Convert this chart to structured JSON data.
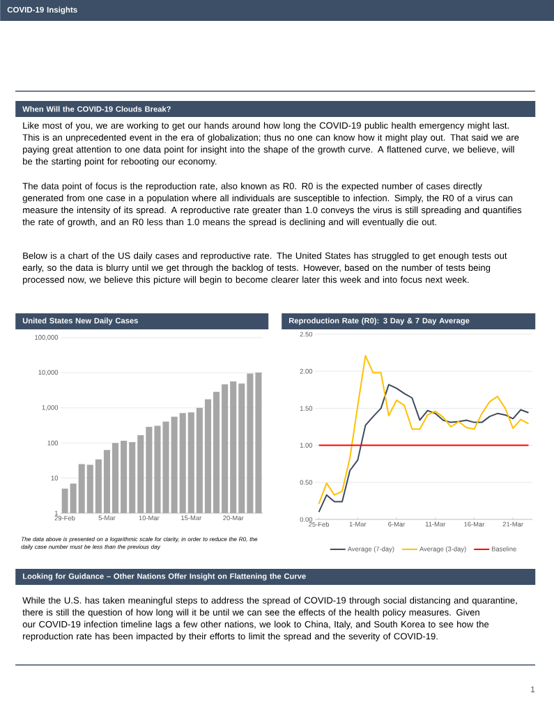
{
  "chart_data": [
    {
      "type": "other",
      "title": "COVID-19 Insights",
      "subtitle": "When Will the COVID-19 Clouds Break?",
      "annotations": [
        "Like most of you, we are working to get our hands around how long the COVID-19 public health emergency might last.  This is an unprecedented event in the era of globalization; thus no one can know how it might play out.  That said we are paying great attention to one data point for insight into the shape of the growth curve.  A flattened curve, we believe, will be the starting point for rebooting our economy.",
        "The data point of focus is the reproduction rate, also known as R0.  R0 is the expected number of cases directly generated from one case in a population where all individuals are susceptible to infection.   Simply, the R0 of a virus can measure the intensity of its spread.  A reproductive rate greater than 1.0 conveys the virus is still spreading and quantifies the rate of growth, and an R0 less than 1.0 means the spread is declining and will eventually die out.",
        "Below is a chart of the US daily cases and reproductive rate.  The United States has struggled to get enough tests out early, so the data is blurry until we get through the backlog of tests.  However, based on the number of tests being processed now, we believe this picture will begin to become clearer later this week and into focus next week."
      ]
    },
    {
      "type": "bar",
      "title": "United States New Daily Cases",
      "categories": [
        "29-Feb",
        null,
        null,
        null,
        null,
        "5-Mar",
        null,
        null,
        null,
        null,
        "10-Mar",
        null,
        null,
        null,
        null,
        "15-Mar",
        null,
        null,
        null,
        null,
        "20-Mar",
        null,
        null,
        null
      ],
      "values": [
        5,
        7,
        25,
        24,
        34,
        63,
        100,
        116,
        106,
        166,
        290,
        309,
        407,
        560,
        708,
        748,
        1000,
        1760,
        2860,
        4670,
        5690,
        4980,
        9550,
        10200
      ],
      "color": "#a6a6a6",
      "log": true,
      "ylim": [
        1,
        100000
      ],
      "yticks": [
        1,
        10,
        100,
        {
          "value": 1000,
          "label": "1,000"
        },
        {
          "value": 10000,
          "label": "10,000"
        },
        {
          "value": 100000,
          "label": "100,000"
        }
      ],
      "grid": "y",
      "annotations": [
        "The data above is presented on a logarithmic scale for clarity, in order to reduce the R0, the daily case number must be less than the previous day"
      ]
    },
    {
      "type": "line",
      "title": "Reproduction Rate (R0): 3 Day & 7 Day Average",
      "categories": [
        "25-Feb",
        null,
        null,
        null,
        null,
        "1-Mar",
        null,
        null,
        null,
        null,
        "6-Mar",
        null,
        null,
        null,
        null,
        "11-Mar",
        null,
        null,
        null,
        null,
        "16-Mar",
        null,
        null,
        null,
        null,
        "21-Mar",
        null,
        null
      ],
      "series": [
        {
          "name": "Average (7-day)",
          "color": "#3d4a5c",
          "values": [
            0.1,
            0.33,
            0.24,
            0.24,
            0.66,
            0.8,
            1.27,
            1.39,
            1.5,
            1.82,
            1.77,
            1.7,
            1.64,
            1.34,
            1.47,
            1.43,
            1.34,
            1.31,
            1.32,
            1.34,
            1.31,
            1.31,
            1.39,
            1.43,
            1.41,
            1.36,
            1.48,
            1.44
          ]
        },
        {
          "name": "Average (3-day)",
          "color": "#ffc000",
          "values": [
            0.21,
            0.49,
            0.33,
            0.38,
            0.83,
            1.53,
            2.21,
            1.98,
            1.98,
            1.4,
            1.61,
            1.54,
            1.22,
            1.22,
            1.41,
            1.46,
            1.38,
            1.25,
            1.32,
            1.24,
            1.22,
            1.43,
            1.59,
            1.66,
            1.5,
            1.23,
            1.35,
            1.29
          ]
        }
      ],
      "ref_lines": [
        {
          "axis": "y",
          "value": 1.0,
          "label": "Baseline",
          "color": "#ff0000"
        }
      ],
      "ylim": [
        0,
        2.5
      ],
      "yticks": [
        {
          "value": 0,
          "label": "0.00"
        },
        {
          "value": 0.5,
          "label": "0.50"
        },
        {
          "value": 1,
          "label": "1.00"
        },
        {
          "value": 1.5,
          "label": "1.50"
        },
        {
          "value": 2,
          "label": "2.00"
        },
        {
          "value": 2.5,
          "label": "2.50"
        }
      ],
      "grid": "y",
      "legend": "bottom"
    },
    {
      "type": "other",
      "title": "Looking for Guidance – Other Nations Offer Insight on Flattening the Curve",
      "annotations": [
        "While the U.S. has taken meaningful steps to address the spread of COVID-19 through social distancing and quarantine, there is still the question of how long will it be until we can see the effects of the health policy measures.  Given our COVID-19 infection timeline lags a few other nations, we look to China, Italy, and South Korea to see how the reproduction rate has been impacted by their efforts to limit the spread and the severity of COVID-19.",
        "1"
      ]
    }
  ]
}
